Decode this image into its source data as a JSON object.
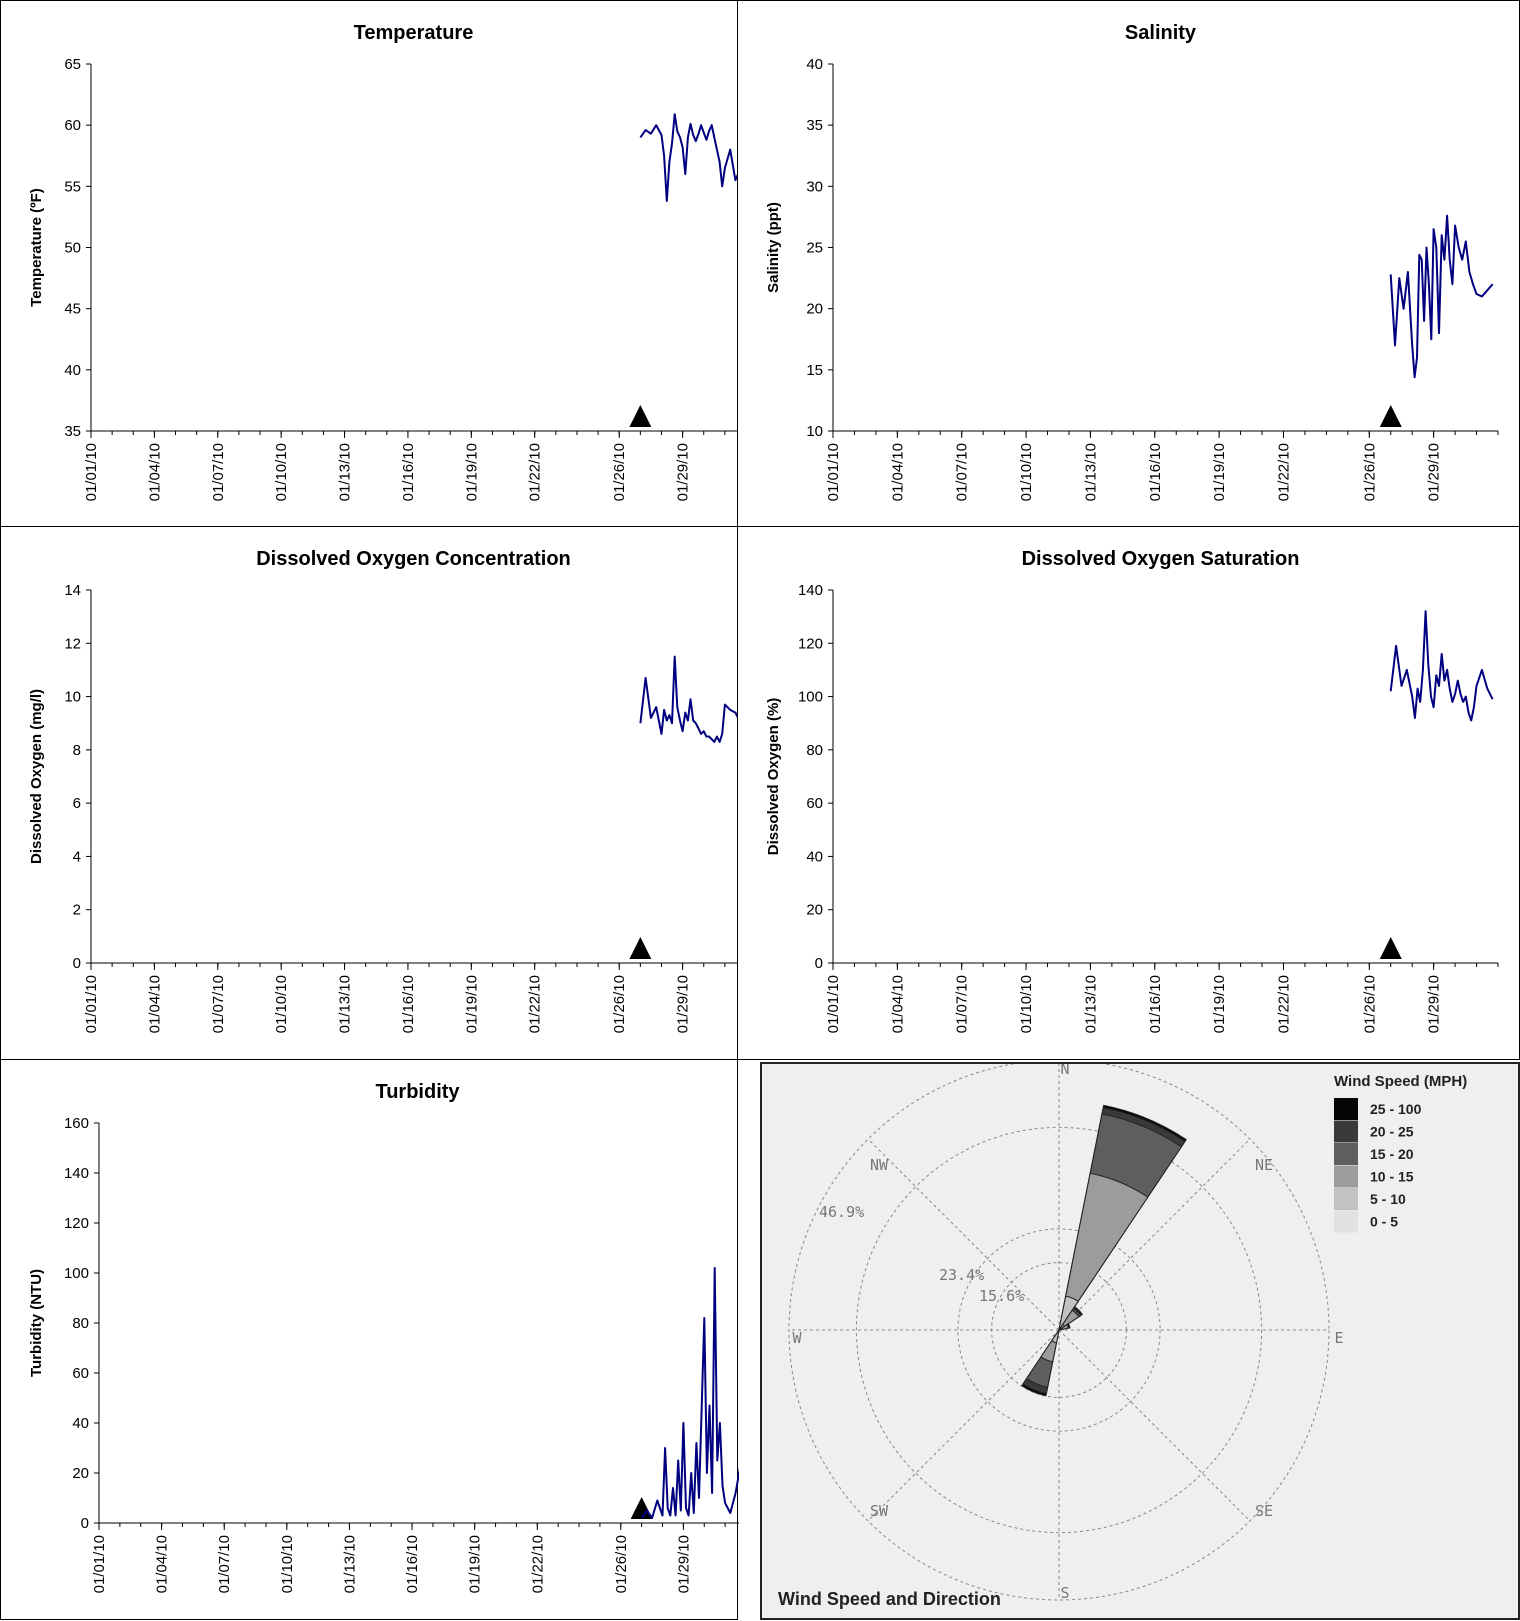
{
  "chart_data": [
    {
      "id": "temperature",
      "type": "line",
      "title": "Temperature",
      "ylabel": "Temperature (ºF)",
      "ylim": [
        35,
        65
      ],
      "ytick_step": 5,
      "xrange": [
        "01/01/10",
        "02/01/10"
      ],
      "x_tick_labels": [
        "01/01/10",
        "01/04/10",
        "01/07/10",
        "01/10/10",
        "01/13/10",
        "01/16/10",
        "01/19/10",
        "01/22/10",
        "01/26/10",
        "01/29/10"
      ],
      "marker_date": "01/27/10",
      "series": [
        {
          "color": "#000080",
          "x": [
            "01/27/10",
            "01/27/10",
            "01/27/10",
            "01/27/10",
            "01/28/10",
            "01/28/10",
            "01/28/10",
            "01/28/10",
            "01/28/10",
            "01/28/10",
            "01/28/10",
            "01/28/10",
            "01/29/10",
            "01/29/10",
            "01/29/10",
            "01/29/10",
            "01/29/10",
            "01/29/10",
            "01/29/10",
            "01/29/10",
            "01/30/10",
            "01/30/10",
            "01/30/10",
            "01/30/10",
            "01/30/10",
            "01/30/10",
            "01/30/10",
            "01/30/10",
            "01/31/10",
            "01/31/10",
            "01/31/10",
            "01/31/10"
          ],
          "y": [
            59.0,
            59.6,
            59.3,
            60.0,
            59.2,
            57.5,
            53.8,
            57.0,
            58.5,
            60.9,
            59.5,
            59.0,
            58.2,
            56.0,
            59.0,
            60.1,
            59.2,
            58.7,
            59.3,
            60.0,
            59.4,
            58.8,
            59.5,
            60.0,
            59.0,
            58.0,
            57.0,
            55.0,
            56.5,
            58.0,
            55.5,
            56.5
          ]
        }
      ]
    },
    {
      "id": "salinity",
      "type": "line",
      "title": "Salinity",
      "ylabel": "Salinity (ppt)",
      "ylim": [
        10,
        40
      ],
      "ytick_step": 5,
      "xrange": [
        "01/01/10",
        "02/01/10"
      ],
      "x_tick_labels": [
        "01/01/10",
        "01/04/10",
        "01/07/10",
        "01/10/10",
        "01/13/10",
        "01/16/10",
        "01/19/10",
        "01/22/10",
        "01/26/10",
        "01/29/10"
      ],
      "marker_date": "01/27/10",
      "series": [
        {
          "color": "#000080",
          "x": [
            "01/27/10",
            "01/27/10",
            "01/27/10",
            "01/27/10",
            "01/27/10",
            "01/28/10",
            "01/28/10",
            "01/28/10",
            "01/28/10",
            "01/28/10",
            "01/28/10",
            "01/28/10",
            "01/28/10",
            "01/28/10",
            "01/29/10",
            "01/29/10",
            "01/29/10",
            "01/29/10",
            "01/29/10",
            "01/29/10",
            "01/29/10",
            "01/29/10",
            "01/30/10",
            "01/30/10",
            "01/30/10",
            "01/30/10",
            "01/30/10",
            "01/30/10",
            "01/31/10",
            "01/31/10",
            "01/31/10",
            "01/31/10"
          ],
          "y": [
            22.8,
            17.0,
            22.5,
            20.0,
            23.0,
            17.0,
            14.4,
            16.0,
            24.4,
            24.0,
            19.0,
            25.0,
            22.0,
            17.5,
            26.5,
            25.0,
            18.0,
            26.0,
            24.0,
            27.6,
            24.0,
            22.0,
            26.8,
            25.0,
            24.0,
            25.5,
            23.0,
            22.0,
            21.2,
            21.0,
            21.5,
            22.0
          ]
        }
      ]
    },
    {
      "id": "do-concentration",
      "type": "line",
      "title": "Dissolved Oxygen Concentration",
      "ylabel": "Dissolved Oxygen (mg/l)",
      "ylim": [
        0,
        14
      ],
      "ytick_step": 2,
      "xrange": [
        "01/01/10",
        "02/01/10"
      ],
      "x_tick_labels": [
        "01/01/10",
        "01/04/10",
        "01/07/10",
        "01/10/10",
        "01/13/10",
        "01/16/10",
        "01/19/10",
        "01/22/10",
        "01/26/10",
        "01/29/10"
      ],
      "marker_date": "01/27/10",
      "series": [
        {
          "color": "#000080",
          "x": [
            "01/27/10",
            "01/27/10",
            "01/27/10",
            "01/27/10",
            "01/28/10",
            "01/28/10",
            "01/28/10",
            "01/28/10",
            "01/28/10",
            "01/28/10",
            "01/28/10",
            "01/28/10",
            "01/29/10",
            "01/29/10",
            "01/29/10",
            "01/29/10",
            "01/29/10",
            "01/29/10",
            "01/29/10",
            "01/29/10",
            "01/30/10",
            "01/30/10",
            "01/30/10",
            "01/30/10",
            "01/30/10",
            "01/30/10",
            "01/30/10",
            "01/30/10",
            "01/31/10",
            "01/31/10",
            "01/31/10",
            "01/31/10"
          ],
          "y": [
            9.0,
            10.7,
            9.2,
            9.6,
            8.6,
            9.5,
            9.1,
            9.3,
            9.0,
            11.5,
            9.6,
            9.1,
            8.7,
            9.4,
            9.1,
            9.9,
            9.1,
            9.0,
            8.8,
            8.6,
            8.7,
            8.5,
            8.5,
            8.4,
            8.3,
            8.5,
            8.3,
            8.6,
            9.7,
            9.5,
            9.4,
            9.0
          ]
        }
      ]
    },
    {
      "id": "do-saturation",
      "type": "line",
      "title": "Dissolved Oxygen Saturation",
      "ylabel": "Dissolved Oxygen (%)",
      "ylim": [
        0,
        140
      ],
      "ytick_step": 20,
      "xrange": [
        "01/01/10",
        "02/01/10"
      ],
      "x_tick_labels": [
        "01/01/10",
        "01/04/10",
        "01/07/10",
        "01/10/10",
        "01/13/10",
        "01/16/10",
        "01/19/10",
        "01/22/10",
        "01/26/10",
        "01/29/10"
      ],
      "marker_date": "01/27/10",
      "series": [
        {
          "color": "#000080",
          "x": [
            "01/27/10",
            "01/27/10",
            "01/27/10",
            "01/27/10",
            "01/28/10",
            "01/28/10",
            "01/28/10",
            "01/28/10",
            "01/28/10",
            "01/28/10",
            "01/28/10",
            "01/28/10",
            "01/29/10",
            "01/29/10",
            "01/29/10",
            "01/29/10",
            "01/29/10",
            "01/29/10",
            "01/29/10",
            "01/29/10",
            "01/30/10",
            "01/30/10",
            "01/30/10",
            "01/30/10",
            "01/30/10",
            "01/30/10",
            "01/30/10",
            "01/30/10",
            "01/31/10",
            "01/31/10",
            "01/31/10",
            "01/31/10"
          ],
          "y": [
            102,
            119,
            104,
            110,
            100,
            92,
            103,
            98,
            110,
            132,
            112,
            100,
            96,
            108,
            104,
            116,
            106,
            110,
            103,
            98,
            101,
            106,
            101,
            98,
            100,
            94,
            91,
            96,
            104,
            110,
            103,
            99
          ]
        }
      ]
    },
    {
      "id": "turbidity",
      "type": "line",
      "title": "Turbidity",
      "ylabel": "Turbidity (NTU)",
      "ylim": [
        0,
        160
      ],
      "ytick_step": 20,
      "xrange": [
        "01/01/10",
        "02/01/10"
      ],
      "x_tick_labels": [
        "01/01/10",
        "01/04/10",
        "01/07/10",
        "01/10/10",
        "01/13/10",
        "01/16/10",
        "01/19/10",
        "01/22/10",
        "01/26/10",
        "01/29/10"
      ],
      "marker_date": "01/27/10",
      "series": [
        {
          "color": "#000080",
          "x": [
            "01/27/10",
            "01/27/10",
            "01/27/10",
            "01/27/10",
            "01/28/10",
            "01/28/10",
            "01/28/10",
            "01/28/10",
            "01/28/10",
            "01/28/10",
            "01/28/10",
            "01/28/10",
            "01/29/10",
            "01/29/10",
            "01/29/10",
            "01/29/10",
            "01/29/10",
            "01/29/10",
            "01/29/10",
            "01/29/10",
            "01/30/10",
            "01/30/10",
            "01/30/10",
            "01/30/10",
            "01/30/10",
            "01/30/10",
            "01/30/10",
            "01/30/10",
            "01/31/10",
            "01/31/10",
            "01/31/10",
            "01/31/10"
          ],
          "y": [
            2,
            5,
            2,
            9,
            3,
            30,
            6,
            3,
            14,
            3,
            25,
            5,
            40,
            6,
            3,
            20,
            4,
            32,
            10,
            45,
            82,
            20,
            47,
            12,
            102,
            25,
            40,
            15,
            8,
            4,
            12,
            24
          ]
        }
      ]
    },
    {
      "id": "wind-rose",
      "type": "wind-rose",
      "title": "Wind Speed and Direction",
      "directions": [
        "N",
        "NE",
        "E",
        "SE",
        "S",
        "SW",
        "W",
        "NW"
      ],
      "ring_labels": [
        "15.6%",
        "23.4%",
        "46.9%"
      ],
      "rings_percent": [
        15.6,
        23.4,
        46.9,
        62.5
      ],
      "legend_title": "Wind Speed (MPH)",
      "bins": [
        "0 - 5",
        "5 - 10",
        "10 - 15",
        "15 - 20",
        "20 - 25",
        "25 - 100"
      ],
      "bin_colors": [
        "#e2e2e2",
        "#c2c2c2",
        "#9c9c9c",
        "#5e5e5e",
        "#3a3a3a",
        "#050505"
      ],
      "petals": [
        {
          "direction_deg": 22.5,
          "cumulative_percent": [
            0.5,
            8.0,
            37.0,
            51.0,
            52.5,
            53.0
          ]
        },
        {
          "direction_deg": 45,
          "cumulative_percent": [
            0.3,
            1.5,
            5.5,
            6.0,
            6.3,
            6.5
          ]
        },
        {
          "direction_deg": 67.5,
          "cumulative_percent": [
            0.2,
            0.8,
            2.2,
            2.4,
            2.5,
            2.6
          ]
        },
        {
          "direction_deg": 202.5,
          "cumulative_percent": [
            0.5,
            3.0,
            7.5,
            13.5,
            15.0,
            15.5
          ]
        }
      ]
    }
  ]
}
